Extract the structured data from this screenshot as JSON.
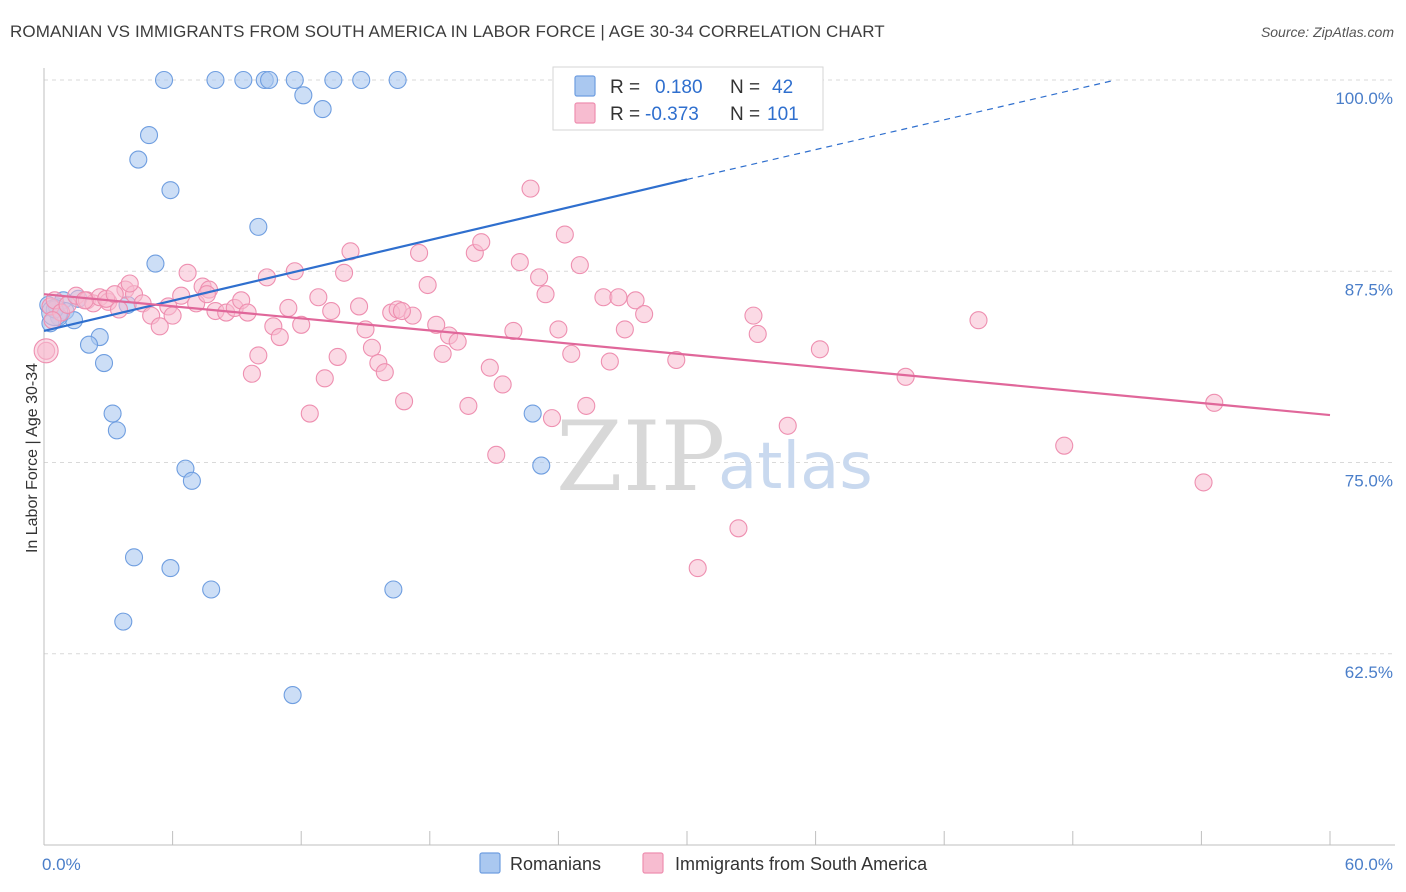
{
  "header": {
    "title": "ROMANIAN VS IMMIGRANTS FROM SOUTH AMERICA IN LABOR FORCE | AGE 30-34 CORRELATION CHART",
    "source": "Source: ZipAtlas.com"
  },
  "legend": {
    "rows": [
      {
        "r_label": "R =",
        "r_value": "0.180",
        "n_label": "N =",
        "n_value": "42"
      },
      {
        "r_label": "R =",
        "r_value": "-0.373",
        "n_label": "N =",
        "n_value": "101"
      }
    ]
  },
  "watermark": {
    "zip": "ZIP",
    "atlas": "atlas"
  },
  "colors": {
    "romanians_fill": "#aac8f0",
    "romanians_stroke": "#6f9ee0",
    "romanians_line": "#2f6fce",
    "immigrants_fill": "#f7bcd0",
    "immigrants_stroke": "#ee8fb0",
    "immigrants_line": "#e0679a",
    "tick_label": "#4a7ec9",
    "grid": "#d9d9d9"
  },
  "chart_data": {
    "type": "scatter",
    "title": "ROMANIAN VS IMMIGRANTS FROM SOUTH AMERICA IN LABOR FORCE | AGE 30-34 CORRELATION CHART",
    "xlabel": "",
    "ylabel": "In Labor Force | Age 30-34",
    "xlim": [
      0,
      60
    ],
    "ylim": [
      50,
      101
    ],
    "x_tick_labels": [
      "0.0%",
      "60.0%"
    ],
    "y_ticks": [
      62.5,
      75.0,
      87.5,
      100.0
    ],
    "y_tick_labels": [
      "62.5%",
      "75.0%",
      "87.5%",
      "100.0%"
    ],
    "grid": true,
    "legend_position": "bottom",
    "series": [
      {
        "name": "Romanians",
        "r": 0.18,
        "n": 42,
        "trend": {
          "x0": 0,
          "y0": 83.6,
          "x1": 30,
          "y1": 93.5,
          "dashed_to_x": 50,
          "dashed_to_y": 100
        },
        "points": [
          [
            5.6,
            100
          ],
          [
            8.0,
            100
          ],
          [
            9.3,
            100
          ],
          [
            10.3,
            100
          ],
          [
            10.5,
            100
          ],
          [
            11.7,
            100
          ],
          [
            13.5,
            100
          ],
          [
            14.8,
            100
          ],
          [
            16.5,
            100
          ],
          [
            12.1,
            99.0
          ],
          [
            13.0,
            98.1
          ],
          [
            4.9,
            96.4
          ],
          [
            4.4,
            94.8
          ],
          [
            5.9,
            92.8
          ],
          [
            10.0,
            90.4
          ],
          [
            5.2,
            88.0
          ],
          [
            0.2,
            85.3
          ],
          [
            0.6,
            85.2
          ],
          [
            0.9,
            85.6
          ],
          [
            1.0,
            84.9
          ],
          [
            1.6,
            85.7
          ],
          [
            3.9,
            85.3
          ],
          [
            1.4,
            84.3
          ],
          [
            0.7,
            84.5
          ],
          [
            2.6,
            83.2
          ],
          [
            2.1,
            82.7
          ],
          [
            2.8,
            81.5
          ],
          [
            3.2,
            78.2
          ],
          [
            3.4,
            77.1
          ],
          [
            6.6,
            74.6
          ],
          [
            6.9,
            73.8
          ],
          [
            22.8,
            78.2
          ],
          [
            23.2,
            74.8
          ],
          [
            4.2,
            68.8
          ],
          [
            5.9,
            68.1
          ],
          [
            7.8,
            66.7
          ],
          [
            16.3,
            66.7
          ],
          [
            3.7,
            64.6
          ],
          [
            11.6,
            59.8
          ],
          [
            27.7,
            100
          ],
          [
            0.3,
            84.1
          ],
          [
            0.5,
            85.0
          ]
        ]
      },
      {
        "name": "Immigrants from South America",
        "r": -0.373,
        "n": 101,
        "trend": {
          "x0": 0,
          "y0": 86.0,
          "x1": 60,
          "y1": 78.1
        },
        "points": [
          [
            0.3,
            85.2
          ],
          [
            0.5,
            85.6
          ],
          [
            0.8,
            84.8
          ],
          [
            1.1,
            85.3
          ],
          [
            1.5,
            85.9
          ],
          [
            2.0,
            85.6
          ],
          [
            2.3,
            85.4
          ],
          [
            2.6,
            85.8
          ],
          [
            3.0,
            85.5
          ],
          [
            3.5,
            85.0
          ],
          [
            3.8,
            86.3
          ],
          [
            4.2,
            86.0
          ],
          [
            4.6,
            85.4
          ],
          [
            5.0,
            84.6
          ],
          [
            5.4,
            83.9
          ],
          [
            5.8,
            85.2
          ],
          [
            6.0,
            84.6
          ],
          [
            6.4,
            85.9
          ],
          [
            6.7,
            87.4
          ],
          [
            7.1,
            85.4
          ],
          [
            7.4,
            86.5
          ],
          [
            7.7,
            86.3
          ],
          [
            8.0,
            84.9
          ],
          [
            8.5,
            84.8
          ],
          [
            8.9,
            85.1
          ],
          [
            9.2,
            85.6
          ],
          [
            9.5,
            84.8
          ],
          [
            10.0,
            82.0
          ],
          [
            9.7,
            80.8
          ],
          [
            10.4,
            87.1
          ],
          [
            10.7,
            83.9
          ],
          [
            11.0,
            83.2
          ],
          [
            11.4,
            85.1
          ],
          [
            11.7,
            87.5
          ],
          [
            12.0,
            84.0
          ],
          [
            12.4,
            78.2
          ],
          [
            12.8,
            85.8
          ],
          [
            13.1,
            80.5
          ],
          [
            13.4,
            84.9
          ],
          [
            13.7,
            81.9
          ],
          [
            14.0,
            87.4
          ],
          [
            14.3,
            88.8
          ],
          [
            14.7,
            85.2
          ],
          [
            15.0,
            83.7
          ],
          [
            15.3,
            82.5
          ],
          [
            15.6,
            81.5
          ],
          [
            15.9,
            80.9
          ],
          [
            16.2,
            84.8
          ],
          [
            16.5,
            85.0
          ],
          [
            16.8,
            79.0
          ],
          [
            17.2,
            84.6
          ],
          [
            17.5,
            88.7
          ],
          [
            17.9,
            86.6
          ],
          [
            18.3,
            84.0
          ],
          [
            18.6,
            82.1
          ],
          [
            18.9,
            83.3
          ],
          [
            19.3,
            82.9
          ],
          [
            19.8,
            78.7
          ],
          [
            20.1,
            88.7
          ],
          [
            20.4,
            89.4
          ],
          [
            20.8,
            81.2
          ],
          [
            21.1,
            75.5
          ],
          [
            21.4,
            80.1
          ],
          [
            21.9,
            83.6
          ],
          [
            22.2,
            88.1
          ],
          [
            22.7,
            92.9
          ],
          [
            23.1,
            87.1
          ],
          [
            23.4,
            86.0
          ],
          [
            24.0,
            83.7
          ],
          [
            24.3,
            89.9
          ],
          [
            24.6,
            82.1
          ],
          [
            25.0,
            87.9
          ],
          [
            25.3,
            78.7
          ],
          [
            26.1,
            85.8
          ],
          [
            26.4,
            81.6
          ],
          [
            26.8,
            85.8
          ],
          [
            27.1,
            83.7
          ],
          [
            27.6,
            85.6
          ],
          [
            28.0,
            84.7
          ],
          [
            29.5,
            81.7
          ],
          [
            30.5,
            68.1
          ],
          [
            32.4,
            70.7
          ],
          [
            33.1,
            84.6
          ],
          [
            33.3,
            83.4
          ],
          [
            34.7,
            77.4
          ],
          [
            36.2,
            82.4
          ],
          [
            40.2,
            80.6
          ],
          [
            43.6,
            84.3
          ],
          [
            47.6,
            76.1
          ],
          [
            54.1,
            73.7
          ],
          [
            54.6,
            78.9
          ],
          [
            23.7,
            77.9
          ],
          [
            0.1,
            82.3
          ],
          [
            0.4,
            84.3
          ],
          [
            4.0,
            86.7
          ],
          [
            1.9,
            85.6
          ],
          [
            2.9,
            85.7
          ],
          [
            7.6,
            86.0
          ],
          [
            3.3,
            86.0
          ],
          [
            16.7,
            84.9
          ]
        ]
      }
    ]
  },
  "bottom_legend": [
    {
      "label": "Romanians"
    },
    {
      "label": "Immigrants from South America"
    }
  ]
}
